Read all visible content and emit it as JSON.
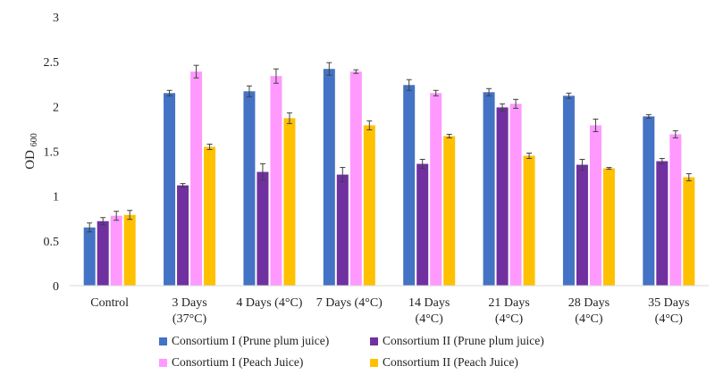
{
  "chart_data": {
    "type": "bar",
    "ylabel": "OD",
    "ylabel_subscript": "600",
    "ylim": [
      0,
      3
    ],
    "yticks": [
      "0",
      "0.5",
      "1",
      "1.5",
      "2",
      "2.5",
      "3"
    ],
    "grid": false,
    "legend_position": "bottom",
    "error_bars": true,
    "categories": [
      [
        "Control"
      ],
      [
        "3 Days",
        "(37°C)"
      ],
      [
        "4 Days (4°C)"
      ],
      [
        "7 Days (4°C)"
      ],
      [
        "14 Days",
        "(4°C)"
      ],
      [
        "21 Days",
        "(4°C)"
      ],
      [
        "28 Days",
        "(4°C)"
      ],
      [
        "35 Days",
        "(4°C)"
      ]
    ],
    "series": [
      {
        "name": "Consortium I (Prune plum juice)",
        "color": "#4472C4",
        "values": [
          0.65,
          2.15,
          2.17,
          2.42,
          2.24,
          2.16,
          2.12,
          1.89
        ],
        "errors": [
          0.05,
          0.03,
          0.06,
          0.07,
          0.06,
          0.04,
          0.03,
          0.02
        ]
      },
      {
        "name": "Consortium II (Prune plum juice)",
        "color": "#7030A0",
        "values": [
          0.72,
          1.12,
          1.27,
          1.24,
          1.36,
          1.99,
          1.35,
          1.39
        ],
        "errors": [
          0.04,
          0.02,
          0.09,
          0.08,
          0.05,
          0.04,
          0.06,
          0.03
        ]
      },
      {
        "name": "Consortium I (Peach Juice)",
        "color": "#FF99FF",
        "values": [
          0.78,
          2.39,
          2.34,
          2.39,
          2.15,
          2.03,
          1.79,
          1.69
        ],
        "errors": [
          0.05,
          0.07,
          0.08,
          0.02,
          0.03,
          0.05,
          0.07,
          0.04
        ]
      },
      {
        "name": "Consortium II (Peach Juice)",
        "color": "#FFC000",
        "values": [
          0.79,
          1.55,
          1.87,
          1.79,
          1.67,
          1.45,
          1.31,
          1.21
        ],
        "errors": [
          0.05,
          0.03,
          0.06,
          0.05,
          0.02,
          0.03,
          0.01,
          0.04
        ]
      }
    ]
  }
}
